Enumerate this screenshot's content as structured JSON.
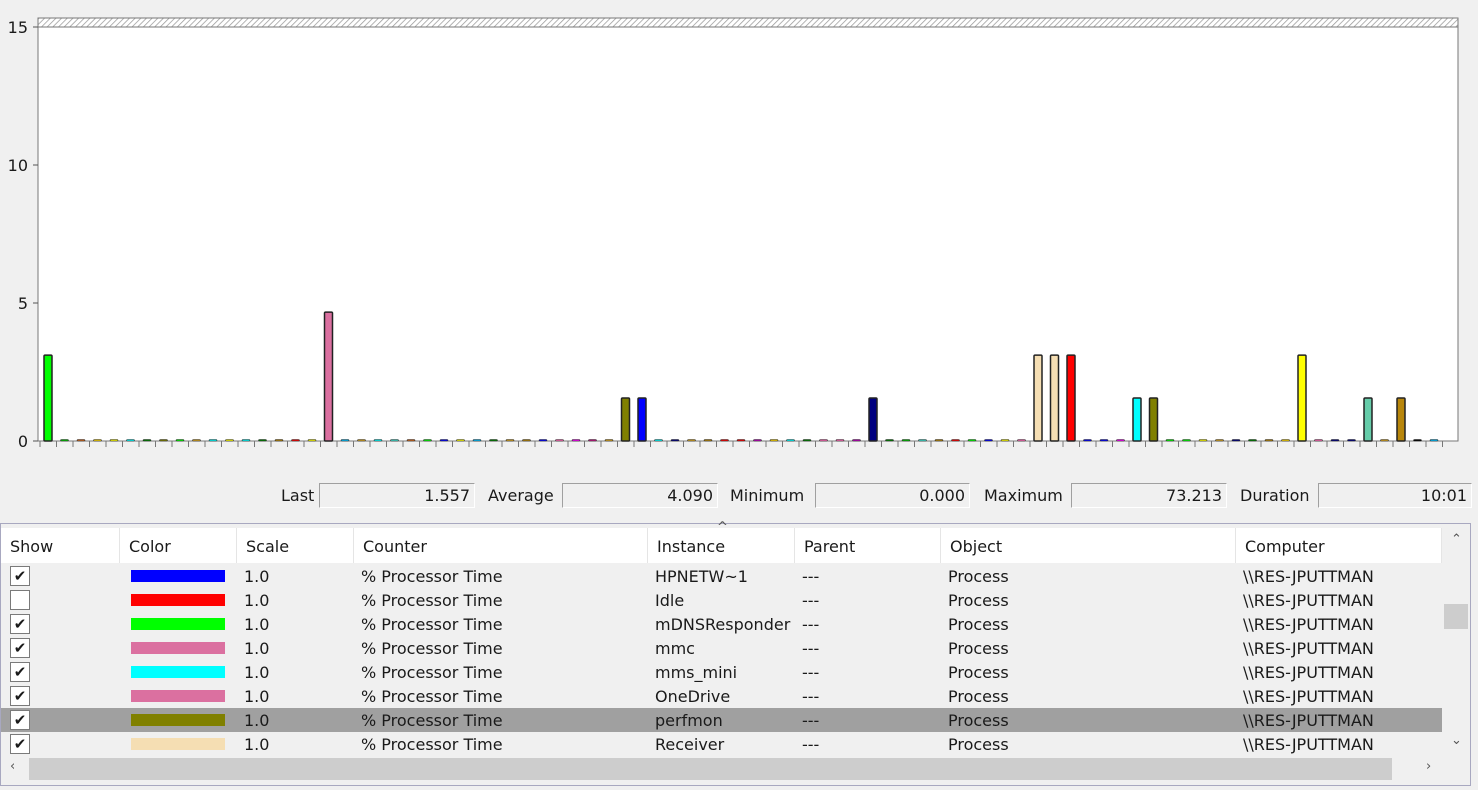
{
  "chart_data": {
    "type": "bar",
    "ylim": [
      0,
      15
    ],
    "yticks": [
      "0",
      "5",
      "10",
      "15"
    ],
    "grid": false,
    "values": [
      3.11,
      0,
      0,
      0,
      0,
      0,
      0,
      0,
      0,
      0,
      0,
      0,
      0,
      0,
      0,
      0,
      0,
      4.67,
      0,
      0,
      0,
      0,
      0,
      0,
      0,
      0,
      0,
      0,
      0,
      0,
      0,
      0,
      0,
      0,
      0,
      1.56,
      1.56,
      0,
      0,
      0,
      0,
      0,
      0,
      0,
      0,
      0,
      0,
      0,
      0,
      0,
      1.56,
      0,
      0,
      0,
      0,
      0,
      0,
      0,
      0,
      0,
      3.11,
      3.11,
      3.11,
      0,
      0,
      0,
      1.56,
      1.56,
      0,
      0,
      0,
      0,
      0,
      0,
      0,
      0,
      3.11,
      0,
      0,
      0,
      1.56,
      0,
      1.56,
      0,
      0
    ],
    "colors": [
      "#00ff00",
      "#00c000",
      "#d2691e",
      "#ffd700",
      "#ffff00",
      "#00ffff",
      "#008000",
      "#808000",
      "#00ff00",
      "#daa520",
      "#00ffff",
      "#ffff00",
      "#00ffff",
      "#008000",
      "#b8860b",
      "#ff0000",
      "#ffff00",
      "#db70a0",
      "#00bfff",
      "#daa520",
      "#00ffff",
      "#40e0d0",
      "#d2691e",
      "#00ff00",
      "#0000ff",
      "#ffff00",
      "#00bfff",
      "#008000",
      "#daa520",
      "#b8860b",
      "#0000ff",
      "#ff69b4",
      "#ff00ff",
      "#c71585",
      "#daa520",
      "#808000",
      "#0000ff",
      "#00ffff",
      "#000080",
      "#daa520",
      "#b8860b",
      "#ff0000",
      "#ff0000",
      "#c000c0",
      "#ffd700",
      "#00ffff",
      "#008000",
      "#ff69b4",
      "#ff69b4",
      "#c000c0",
      "#000080",
      "#008000",
      "#00c000",
      "#40e0d0",
      "#b8860b",
      "#ff0000",
      "#00ff00",
      "#0000ff",
      "#ffff00",
      "#ff69b4",
      "#f5deb3",
      "#f5deb3",
      "#ff0000",
      "#0000ff",
      "#0000ff",
      "#ff00ff",
      "#00ffff",
      "#808000",
      "#00ff00",
      "#00ff00",
      "#ffff00",
      "#daa520",
      "#000080",
      "#008000",
      "#b8860b",
      "#ffd700",
      "#ffff00",
      "#ff69b4",
      "#000080",
      "#000080",
      "#66cdaa",
      "#daa520",
      "#b8860b",
      "#000000",
      "#00bfff"
    ]
  },
  "stats": {
    "last_label": "Last",
    "last": "1.557",
    "average_label": "Average",
    "average": "4.090",
    "minimum_label": "Minimum",
    "minimum": "0.000",
    "maximum_label": "Maximum",
    "maximum": "73.213",
    "duration_label": "Duration",
    "duration": "10:01"
  },
  "table": {
    "headers": [
      "Show",
      "Color",
      "Scale",
      "Counter",
      "Instance",
      "Parent",
      "Object",
      "Computer"
    ],
    "sort_indicator": "^",
    "rows": [
      {
        "show": true,
        "color": "#0000ff",
        "scale": "1.0",
        "counter": "% Processor Time",
        "instance": "HPNETW~1",
        "parent": "---",
        "object": "Process",
        "computer": "\\\\RES-JPUTTMAN"
      },
      {
        "show": false,
        "color": "#ff0000",
        "scale": "1.0",
        "counter": "% Processor Time",
        "instance": "Idle",
        "parent": "---",
        "object": "Process",
        "computer": "\\\\RES-JPUTTMAN"
      },
      {
        "show": true,
        "color": "#00ff00",
        "scale": "1.0",
        "counter": "% Processor Time",
        "instance": "mDNSResponder",
        "parent": "---",
        "object": "Process",
        "computer": "\\\\RES-JPUTTMAN"
      },
      {
        "show": true,
        "color": "#db70a0",
        "scale": "1.0",
        "counter": "% Processor Time",
        "instance": "mmc",
        "parent": "---",
        "object": "Process",
        "computer": "\\\\RES-JPUTTMAN"
      },
      {
        "show": true,
        "color": "#00ffff",
        "scale": "1.0",
        "counter": "% Processor Time",
        "instance": "mms_mini",
        "parent": "---",
        "object": "Process",
        "computer": "\\\\RES-JPUTTMAN"
      },
      {
        "show": true,
        "color": "#db70a0",
        "scale": "1.0",
        "counter": "% Processor Time",
        "instance": "OneDrive",
        "parent": "---",
        "object": "Process",
        "computer": "\\\\RES-JPUTTMAN"
      },
      {
        "show": true,
        "color": "#808000",
        "scale": "1.0",
        "counter": "% Processor Time",
        "instance": "perfmon",
        "parent": "---",
        "object": "Process",
        "computer": "\\\\RES-JPUTTMAN",
        "selected": true
      },
      {
        "show": true,
        "color": "#f5deb3",
        "scale": "1.0",
        "counter": "% Processor Time",
        "instance": "Receiver",
        "parent": "---",
        "object": "Process",
        "computer": "\\\\RES-JPUTTMAN"
      }
    ]
  }
}
